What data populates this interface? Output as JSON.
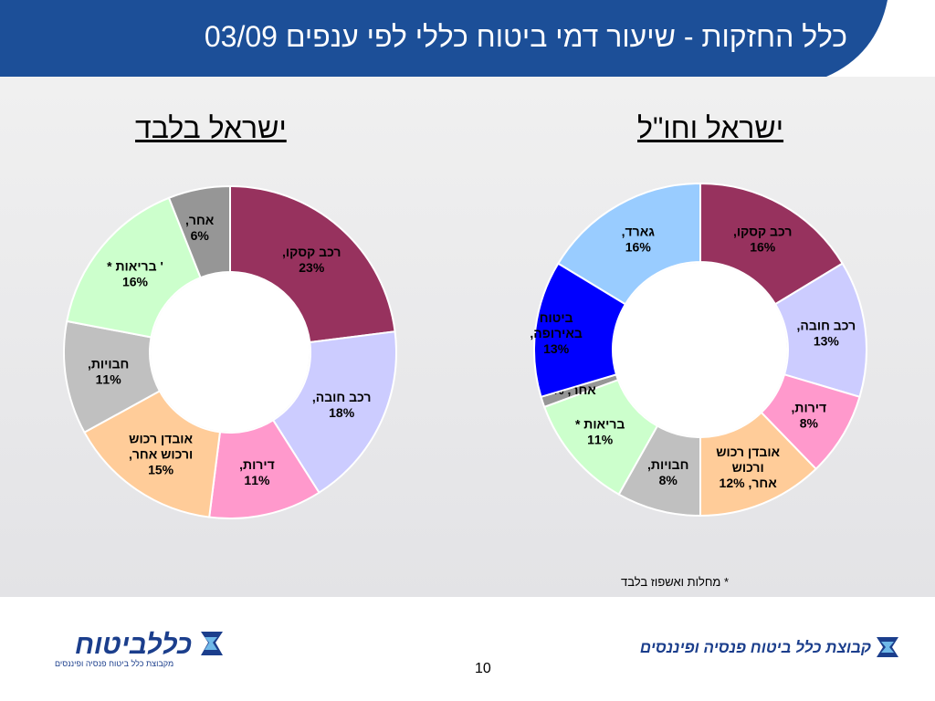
{
  "header": {
    "title": "כלל החזקות - שיעור דמי ביטוח כללי לפי ענפים 03/09"
  },
  "colors": {
    "header_bg": "#1c4f98",
    "brand_blue": "#1b3e8c"
  },
  "chart_data": [
    {
      "type": "pie",
      "title": "ישראל וחו\"ל",
      "slices": [
        {
          "label": "רכב קסקו,",
          "value": 16,
          "text": "16%",
          "color": "#97325e",
          "text_color": "#000000"
        },
        {
          "label": "רכב חובה,",
          "value": 13,
          "text": "13%",
          "color": "#ccccff",
          "text_color": "#000000"
        },
        {
          "label": "דירות,",
          "value": 8,
          "text": "8%",
          "color": "#ff99cc",
          "text_color": "#000000"
        },
        {
          "label": "אובדן רכוש ורכוש אחר,",
          "value": 12,
          "text": "12%",
          "color": "#ffcc99",
          "text_color": "#000000"
        },
        {
          "label": "חבויות,",
          "value": 8,
          "text": "8%",
          "color": "#c0c0c0",
          "text_color": "#000000"
        },
        {
          "label": "בריאות *",
          "value": 11,
          "text": "11%",
          "color": "#ccffcc",
          "text_color": "#000000"
        },
        {
          "label": "אחר,",
          "value": 1,
          "text": "1%",
          "color": "#969696",
          "text_color": "#000000"
        },
        {
          "label": "ביטוח באירופה,",
          "value": 13,
          "text": "13%",
          "color": "#0000ff",
          "text_color": "#ffffff"
        },
        {
          "label": "גארד,",
          "value": 16,
          "text": "16%",
          "color": "#99ccff",
          "text_color": "#000000"
        }
      ]
    },
    {
      "type": "pie",
      "title": "ישראל בלבד",
      "slices": [
        {
          "label": "רכב קסקו,",
          "value": 23,
          "text": "23%",
          "color": "#97325e",
          "text_color": "#ffffff"
        },
        {
          "label": "רכב חובה,",
          "value": 18,
          "text": "18%",
          "color": "#ccccff",
          "text_color": "#000000"
        },
        {
          "label": "דירות,",
          "value": 11,
          "text": "11%",
          "color": "#ff99cc",
          "text_color": "#000000"
        },
        {
          "label": "אובדן רכוש ורכוש אחר,",
          "value": 15,
          "text": "15%",
          "color": "#ffcc99",
          "text_color": "#000000"
        },
        {
          "label": "חבויות,",
          "value": 11,
          "text": "11%",
          "color": "#c0c0c0",
          "text_color": "#000000"
        },
        {
          "label": "בריאות *",
          "value": 16,
          "text": "16%",
          "color": "#ccffcc",
          "text_color": "#000000"
        },
        {
          "label": "אחר,",
          "value": 6,
          "text": "6%",
          "color": "#969696",
          "text_color": "#000000"
        }
      ]
    }
  ],
  "footnote": "* מחלות ואשפוז בלבד",
  "footer": {
    "logo_left_brand": "כללביטוח",
    "logo_left_sub": "מקבוצת כלל ביטוח פנסיה ופיננסים",
    "logo_right_text": "קבוצת כלל ביטוח פנסיה ופיננסים",
    "page_number": "10"
  }
}
